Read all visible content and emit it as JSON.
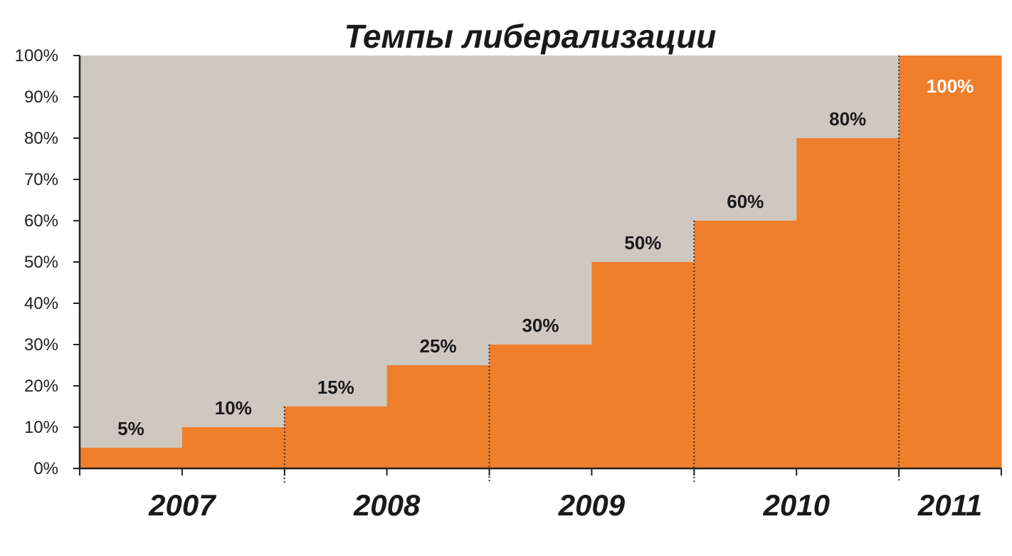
{
  "chart_data": {
    "type": "bar",
    "title": "Темпы либерализации",
    "categories": [
      "2007",
      "2007",
      "2008",
      "2008",
      "2009",
      "2009",
      "2010",
      "2010",
      "2011"
    ],
    "values": [
      5,
      10,
      15,
      25,
      30,
      50,
      60,
      80,
      100
    ],
    "data_labels": [
      "5%",
      "10%",
      "15%",
      "25%",
      "30%",
      "50%",
      "60%",
      "80%",
      "100%"
    ],
    "year_labels": [
      "2007",
      "2008",
      "2009",
      "2010",
      "2011"
    ],
    "yticks": [
      "0%",
      "10%",
      "20%",
      "30%",
      "40%",
      "50%",
      "60%",
      "70%",
      "80%",
      "90%",
      "100%"
    ],
    "ylim": [
      0,
      100
    ],
    "xlabel": "",
    "ylabel": "",
    "grid": false,
    "legend": "none",
    "colors": {
      "bar": "#F07F2C",
      "plot_background": "#CFC8C0",
      "label_on_bar": "#FFFFFF",
      "text": "#1A1A1A"
    }
  }
}
